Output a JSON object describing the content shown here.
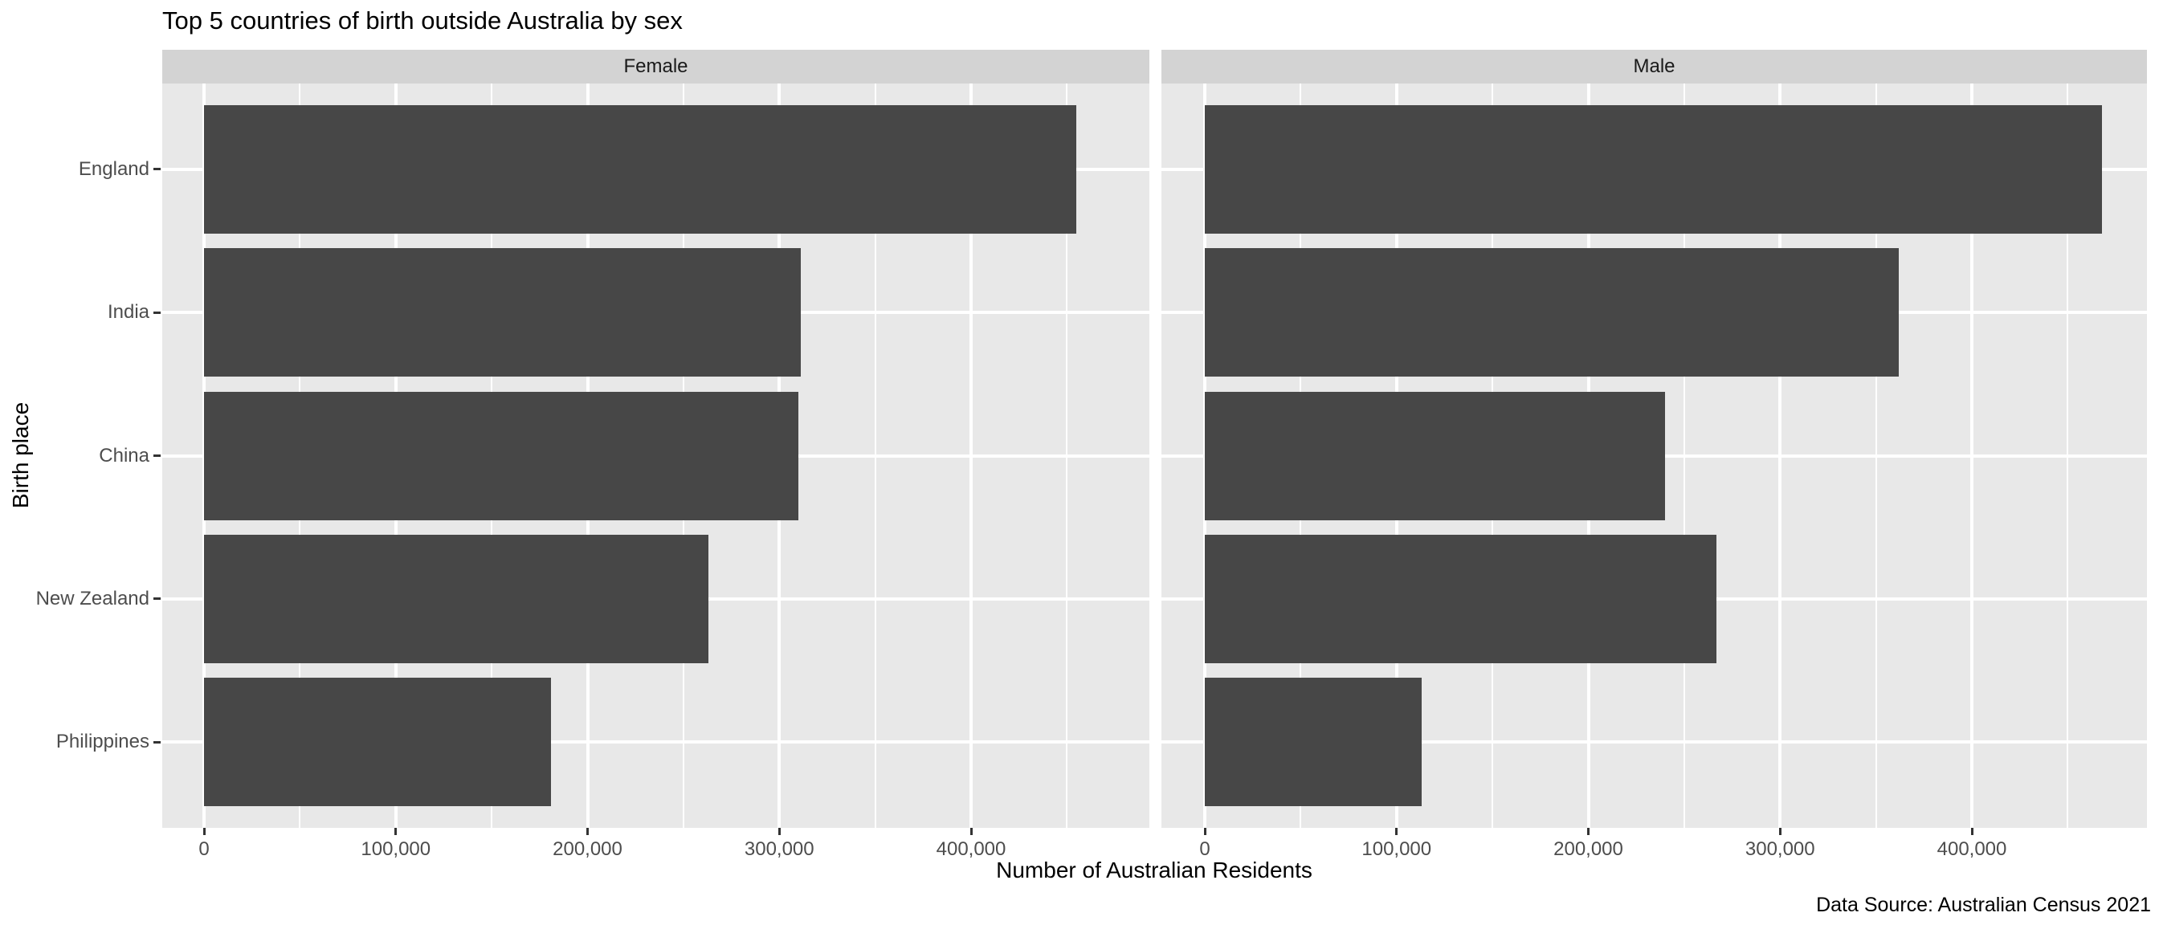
{
  "chart_data": {
    "type": "bar",
    "orientation": "horizontal",
    "title": "Top 5 countries of birth outside Australia by sex",
    "xlabel": "Number of Australian Residents",
    "ylabel": "Birth place",
    "caption": "Data Source: Australian Census 2021",
    "facets": [
      "Female",
      "Male"
    ],
    "categories": [
      "England",
      "India",
      "China",
      "New Zealand",
      "Philippines"
    ],
    "series": [
      {
        "name": "Female",
        "values": [
          455000,
          311000,
          310000,
          263000,
          181000
        ]
      },
      {
        "name": "Male",
        "values": [
          468000,
          362000,
          240000,
          267000,
          113000
        ]
      }
    ],
    "x_tick_values": [
      0,
      100000,
      200000,
      300000,
      400000
    ],
    "x_tick_labels": [
      "0",
      "100,000",
      "200,000",
      "300,000",
      "400,000"
    ],
    "x_minor_tick_values": [
      50000,
      150000,
      250000,
      350000,
      450000
    ],
    "xlim": [
      0,
      493000
    ],
    "grid": true,
    "legend": "none",
    "colors": {
      "bar": "#474747",
      "panel_bg": "#e8e8e8",
      "strip_bg": "#d3d3d3",
      "grid": "#ffffff",
      "tick_mark": "#333333",
      "tick_text": "#4d4d4d",
      "text": "#000000"
    }
  }
}
